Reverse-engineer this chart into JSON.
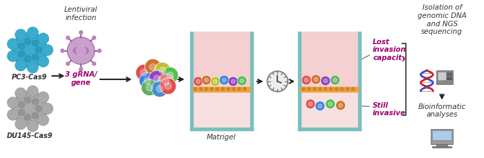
{
  "bg_color": "#ffffff",
  "fig_width": 7.0,
  "fig_height": 2.29,
  "dpi": 100,
  "texts": {
    "lentiviral": "Lentiviral\ninfection",
    "pc3": "PC3-Cas9",
    "du145": "DU145-Cas9",
    "grna": "3 gRNA/\ngene",
    "matrigel": "Matrigel",
    "lost": "Lost\ninvasion\ncapacity",
    "still": "Still\ninvasive",
    "isolation": "Isolation of\ngenomic DNA\nand NGS\nsequencing",
    "bioinformatic": "Bioinformatic\nanalyses"
  },
  "colors": {
    "pc3_cell": "#3aaccf",
    "du145_cell": "#aaaaaa",
    "arrow": "#222222",
    "grna_text": "#a0006f",
    "lost_text": "#a0006f",
    "still_text": "#a0006f",
    "italic_text": "#333333",
    "matrigel_orange": "#f0a040",
    "matrigel_label": "#333333",
    "container_border": "#7bbfbf",
    "container_fill": "#f5d0d0",
    "clock_color": "#888888",
    "dna_blue": "#4444cc",
    "dna_red": "#cc2222",
    "bracket_color": "#555555"
  },
  "cell_colors_mixed": [
    "#e05050",
    "#d07030",
    "#c0c030",
    "#50c050",
    "#4080e0",
    "#9040c0",
    "#e08080",
    "#60b060",
    "#4090d0"
  ],
  "cell_colors_top": [
    "#e05050",
    "#d07030",
    "#9040c0",
    "#60b060"
  ],
  "cell_colors_bottom": [
    "#e05050",
    "#4080e0",
    "#50c050",
    "#d07030"
  ]
}
